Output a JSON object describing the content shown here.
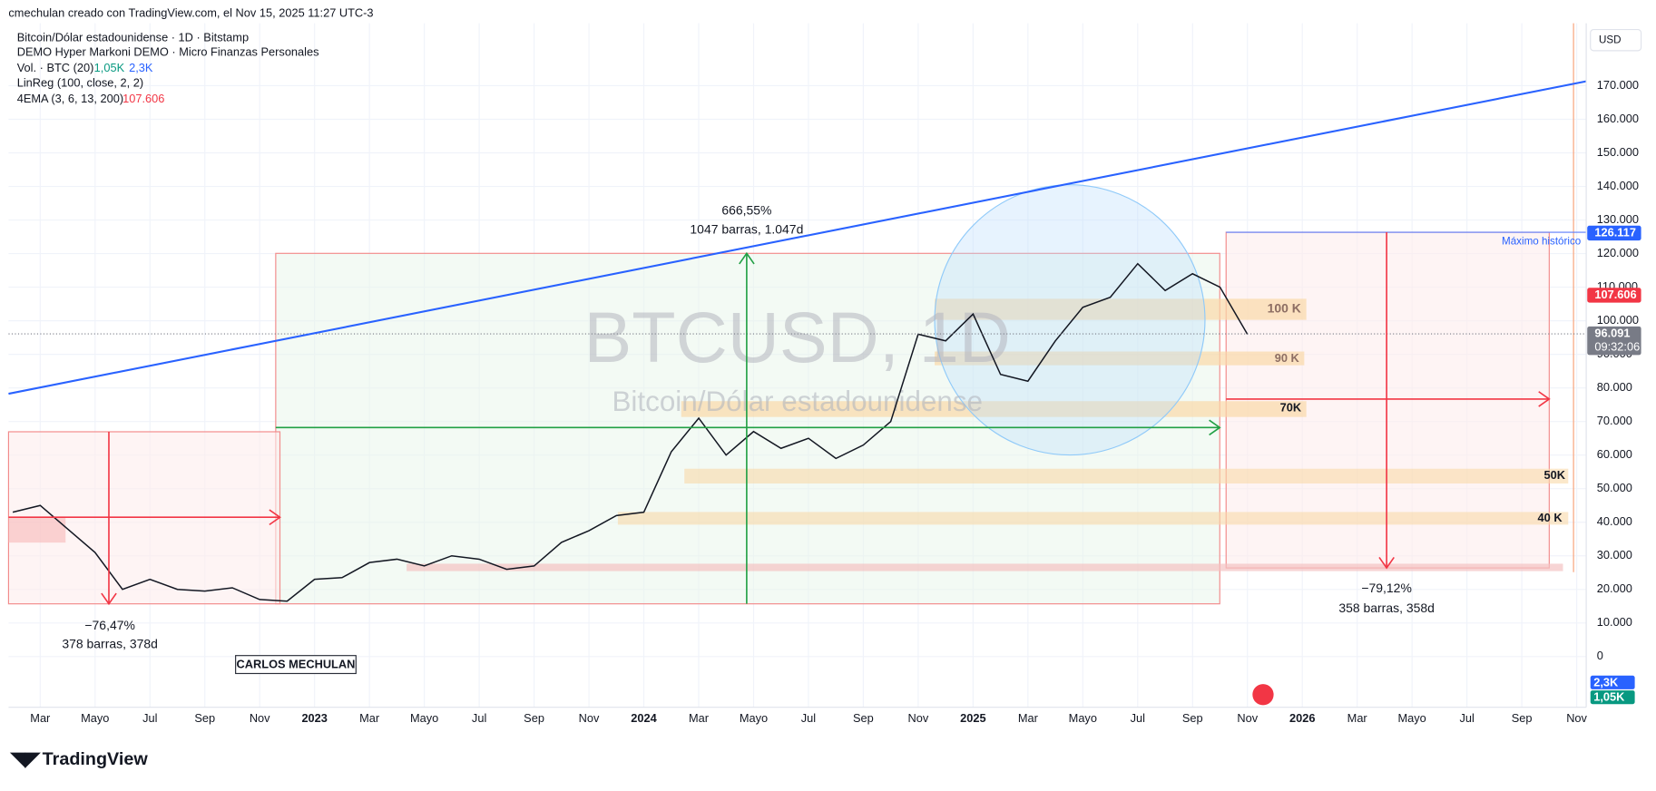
{
  "header": {
    "author_line": "cmechulan creado con TradingView.com, el Nov 15, 2025 11:27 UTC-3"
  },
  "legend": {
    "symbol": "Bitcoin/Dólar estadounidense · 1D · Bitstamp",
    "account": "DEMO Hyper Markoni DEMO · Micro Finanzas Personales",
    "volume": {
      "label": "Vol. · BTC (20)",
      "value1": "1,05K",
      "value2": "2,3K"
    },
    "linreg": "LinReg (100, close, 2, 2)",
    "ema": {
      "label": "4EMA (3, 6, 13, 200)",
      "value": "107.606"
    }
  },
  "chart_data": {
    "type": "line",
    "watermark": "BTCUSD, 1D",
    "watermark_sub": "Bitcoin/Dólar estadounidense",
    "currency": "USD",
    "categories": [
      null,
      "Mar",
      null,
      "Mayo",
      null,
      "Jul",
      null,
      "Sep",
      null,
      "Nov",
      null,
      "2023",
      null,
      "Mar",
      null,
      "Mayo",
      null,
      "Jul",
      null,
      "Sep",
      null,
      "Nov",
      null,
      "2024",
      null,
      "Mar",
      null,
      "Mayo",
      null,
      "Jul",
      null,
      "Sep",
      null,
      "Nov",
      null,
      "2025",
      null,
      "Mar",
      null,
      "Mayo",
      null,
      "Jul",
      null,
      "Sep",
      null,
      "Nov",
      null,
      "2026",
      null,
      "Mar",
      null,
      "Mayo",
      null,
      "Jul",
      null,
      "Sep",
      null,
      "Nov"
    ],
    "values": [
      43000,
      45000,
      38000,
      31000,
      20000,
      23000,
      20000,
      19500,
      20500,
      17000,
      16500,
      23000,
      23500,
      28000,
      29000,
      27000,
      30000,
      29000,
      26000,
      27000,
      34000,
      37500,
      42000,
      43000,
      61000,
      71000,
      60000,
      67000,
      62000,
      65000,
      59000,
      63000,
      70000,
      96000,
      94000,
      102000,
      84000,
      82000,
      94000,
      104000,
      107000,
      117000,
      109000,
      114000,
      110000,
      96000,
      null,
      null,
      null,
      null,
      null,
      null,
      null,
      null,
      null,
      null,
      null,
      null
    ],
    "color": "#131722",
    "ylim": [
      -15100,
      188600
    ],
    "yticks": [
      0,
      {
        "value": 10000,
        "label": "10.000"
      },
      {
        "value": 20000,
        "label": "20.000"
      },
      {
        "value": 30000,
        "label": "30.000"
      },
      {
        "value": 40000,
        "label": "40.000"
      },
      {
        "value": 50000,
        "label": "50.000"
      },
      {
        "value": 60000,
        "label": "60.000"
      },
      {
        "value": 70000,
        "label": "70.000"
      },
      {
        "value": 80000,
        "label": "80.000"
      },
      {
        "value": 90000,
        "label": "90.000"
      },
      {
        "value": 100000,
        "label": "100.000"
      },
      {
        "value": 110000,
        "label": "110.000"
      },
      {
        "value": 120000,
        "label": "120.000"
      },
      {
        "value": 130000,
        "label": "130.000"
      },
      {
        "value": 140000,
        "label": "140.000"
      },
      {
        "value": 150000,
        "label": "150.000"
      },
      {
        "value": 160000,
        "label": "160.000"
      },
      {
        "value": 170000,
        "label": "170.000"
      }
    ],
    "grid": true,
    "price_tags": [
      {
        "value": 126117,
        "label": "126.117",
        "color": "#2962ff"
      },
      {
        "value": 107606,
        "label": "107.606",
        "color": "#f23645"
      },
      {
        "value": 96091,
        "label": "96.091",
        "time": "09:32:06",
        "color": "#787b86"
      }
    ],
    "annotations": [
      "666,55%",
      "1047 barras, 1.047d",
      "−76,47%",
      "378 barras, 378d",
      "−79,12%",
      "358 barras, 358d",
      "Máximo histórico",
      "100 K",
      "90 K",
      "70K",
      "50K",
      "40 K"
    ]
  },
  "signature": "CARLOS MECHULAN",
  "footer": {
    "brand": "TradingView"
  }
}
